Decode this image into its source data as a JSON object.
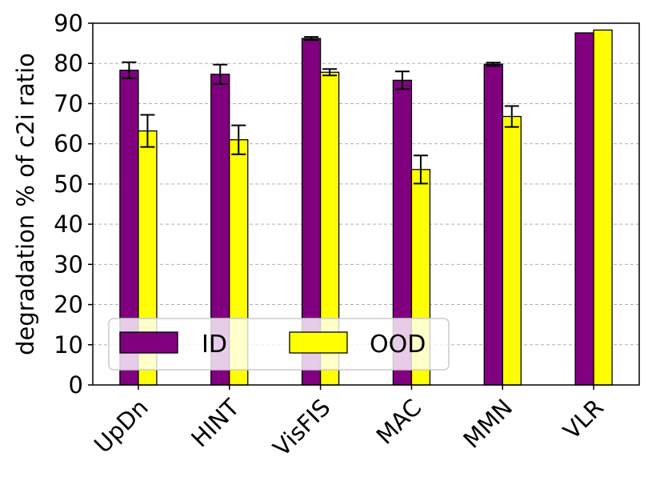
{
  "chart_data": {
    "type": "bar",
    "title": "",
    "xlabel": "",
    "ylabel": "degradation % of c2i ratio",
    "ylim": [
      0,
      90
    ],
    "yticks": [
      0,
      10,
      20,
      30,
      40,
      50,
      60,
      70,
      80,
      90
    ],
    "grid": "horizontal dashed",
    "legend_position": "bottom-left",
    "categories": [
      "UpDn",
      "HINT",
      "VisFIS",
      "MAC",
      "MMN",
      "VLR"
    ],
    "series": [
      {
        "name": "ID",
        "color": "#800080",
        "values": [
          78.3,
          77.3,
          86.2,
          75.8,
          79.8,
          87.6
        ],
        "errors": [
          2.0,
          2.4,
          0.4,
          2.2,
          0.4,
          null
        ]
      },
      {
        "name": "OOD",
        "color": "#ffff00",
        "values": [
          63.2,
          61.0,
          77.8,
          53.6,
          66.8,
          88.3
        ],
        "errors": [
          4.0,
          3.6,
          0.8,
          3.5,
          2.6,
          null
        ]
      }
    ]
  }
}
